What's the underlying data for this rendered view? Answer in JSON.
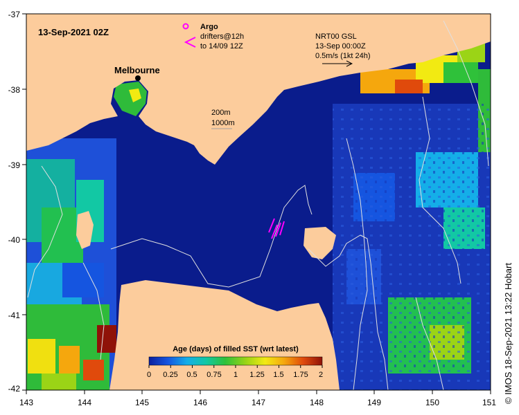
{
  "title": {
    "date_label": "13-Sep-2021 02Z"
  },
  "legend_drifters": {
    "argo_label": "Argo",
    "drifters_line1": "drifters@12h",
    "drifters_line2": "to 14/09 12Z",
    "argo_color": "#ff00ff"
  },
  "current_scale": {
    "line1": "NRT00 GSL",
    "line2": "13-Sep 00:00Z",
    "line3": "0.5m/s (1kt 24h)"
  },
  "depth_legend": {
    "line1": "200m",
    "line2": "1000m"
  },
  "city": {
    "name": "Melbourne"
  },
  "colorbar": {
    "title": "Age (days) of filled SST (wrt latest)",
    "ticks": [
      "0",
      "0.25",
      "0.5",
      "0.75",
      "1",
      "1.25",
      "1.5",
      "1.75",
      "2"
    ],
    "colors": [
      "#0b1f9e",
      "#1555e0",
      "#14aee8",
      "#12c8a4",
      "#2fc13a",
      "#9bd416",
      "#f2ea12",
      "#f5a70d",
      "#e04a0c",
      "#8f1208"
    ]
  },
  "axes": {
    "x_ticks": [
      "143",
      "144",
      "145",
      "146",
      "147",
      "148",
      "149",
      "150",
      "151"
    ],
    "y_ticks": [
      "-37",
      "-38",
      "-39",
      "-40",
      "-41",
      "-42"
    ]
  },
  "credit": "© IMOS 18-Sep-2021 13:22 Hobart",
  "colors": {
    "land": "#fccc9c",
    "ocean_deep": "#0a1c8c",
    "ocean_mid": "#1c48d0",
    "contour": "#e0e0e0"
  }
}
